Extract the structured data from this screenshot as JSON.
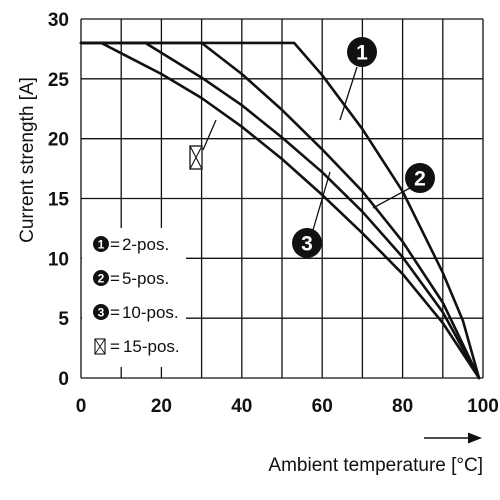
{
  "chart_data": {
    "type": "line",
    "title": "",
    "xlabel": "Ambient temperature [°C]",
    "ylabel": "Current strength [A]",
    "xlim": [
      0,
      100
    ],
    "ylim": [
      0,
      30
    ],
    "xticks": [
      "0",
      "20",
      "40",
      "60",
      "80",
      "100"
    ],
    "yticks": [
      "0",
      "5",
      "10",
      "15",
      "20",
      "25",
      "30"
    ],
    "grid": true,
    "legend_position": "bottom-left",
    "series": [
      {
        "marker": "1",
        "label": "2-pos.",
        "points": [
          [
            0,
            28
          ],
          [
            53,
            28
          ],
          [
            60,
            25.3
          ],
          [
            70,
            20.8
          ],
          [
            80,
            15.6
          ],
          [
            90,
            8.8
          ],
          [
            95,
            4.8
          ],
          [
            99,
            0
          ]
        ]
      },
      {
        "marker": "2",
        "label": "5-pos.",
        "points": [
          [
            0,
            28
          ],
          [
            30,
            28
          ],
          [
            40,
            25.4
          ],
          [
            50,
            22.4
          ],
          [
            60,
            19.1
          ],
          [
            70,
            15.6
          ],
          [
            80,
            11.4
          ],
          [
            90,
            6.3
          ],
          [
            99,
            0
          ]
        ]
      },
      {
        "marker": "3",
        "label": "10-pos.",
        "points": [
          [
            0,
            28
          ],
          [
            16,
            28
          ],
          [
            30,
            25.1
          ],
          [
            40,
            22.8
          ],
          [
            50,
            20.1
          ],
          [
            60,
            17.2
          ],
          [
            70,
            13.9
          ],
          [
            80,
            10.1
          ],
          [
            90,
            5.5
          ],
          [
            99,
            0
          ]
        ]
      },
      {
        "marker": "⊠",
        "label": "15-pos.",
        "points": [
          [
            0,
            28
          ],
          [
            5,
            28
          ],
          [
            20,
            25.4
          ],
          [
            30,
            23.4
          ],
          [
            40,
            21.0
          ],
          [
            50,
            18.3
          ],
          [
            60,
            15.3
          ],
          [
            70,
            12.1
          ],
          [
            80,
            8.7
          ],
          [
            90,
            4.6
          ],
          [
            99,
            0
          ]
        ]
      }
    ]
  }
}
